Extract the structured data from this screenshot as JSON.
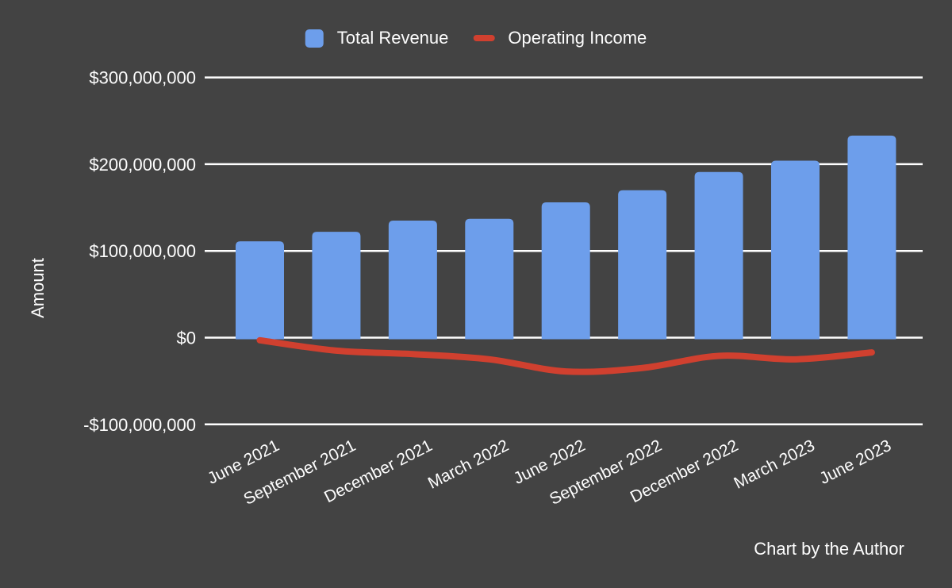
{
  "page": {
    "background_color": "#434343",
    "text_color": "#fdfdfd",
    "attribution": "Chart by the Author"
  },
  "legend": {
    "items": [
      {
        "label": "Total Revenue",
        "marker": "square",
        "color": "#6d9eeb"
      },
      {
        "label": "Operating Income",
        "marker": "dash",
        "color": "#d0402f"
      }
    ]
  },
  "chart_data": {
    "type": "bar",
    "subtype": "bar-with-line-overlay",
    "title": "",
    "xlabel": "",
    "ylabel": "Amount",
    "categories": [
      "June 2021",
      "September 2021",
      "December 2021",
      "March 2022",
      "June 2022",
      "September 2022",
      "December 2022",
      "March 2023",
      "June 2023"
    ],
    "series": [
      {
        "name": "Total Revenue",
        "type": "bar",
        "color": "#6d9eeb",
        "values": [
          111000000,
          122000000,
          135000000,
          137000000,
          156000000,
          170000000,
          191000000,
          204000000,
          233000000
        ]
      },
      {
        "name": "Operating Income",
        "type": "line",
        "color": "#d0402f",
        "values": [
          -3000000,
          -15000000,
          -19000000,
          -25000000,
          -39000000,
          -35000000,
          -21000000,
          -25000000,
          -17000000
        ]
      }
    ],
    "ylim": [
      -100000000,
      300000000
    ],
    "yticks": [
      {
        "value": 300000000,
        "label": "$300,000,000"
      },
      {
        "value": 200000000,
        "label": "$200,000,000"
      },
      {
        "value": 100000000,
        "label": "$100,000,000"
      },
      {
        "value": 0,
        "label": "$0"
      },
      {
        "value": -100000000,
        "label": "-$100,000,000"
      }
    ],
    "grid": true,
    "grid_color": "#ffffff",
    "legend_position": "top",
    "x_tick_rotation_deg": -27
  }
}
